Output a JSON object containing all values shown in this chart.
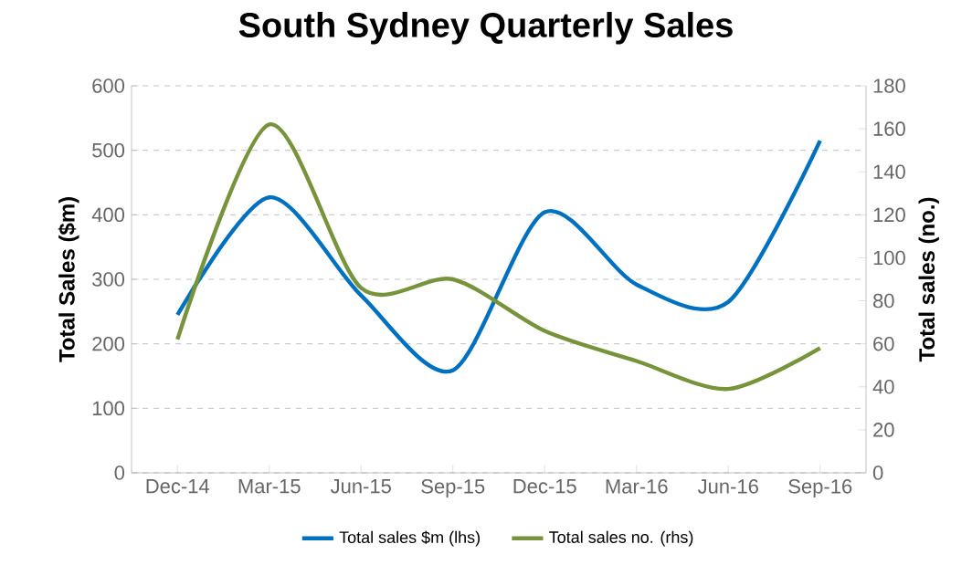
{
  "chart_data": {
    "type": "line",
    "title": "South Sydney Quarterly Sales",
    "ylabel": "Total Sales ($m)",
    "y2label": "Total sales (no.)",
    "categories": [
      "Dec-14",
      "Mar-15",
      "Jun-15",
      "Sep-15",
      "Dec-15",
      "Mar-16",
      "Jun-16",
      "Sep-16"
    ],
    "series": [
      {
        "name": "Total sales $m (lhs)",
        "color": "#0070c0",
        "values": [
          245,
          427,
          275,
          159,
          404,
          292,
          265,
          515
        ]
      },
      {
        "name": "Total sales no. (rhs)",
        "color": "#77933c",
        "axis": "y2",
        "values": [
          62,
          162,
          86,
          90,
          66,
          52,
          39,
          58
        ]
      }
    ],
    "ylim": [
      0,
      600
    ],
    "yticks": [
      0,
      100,
      200,
      300,
      400,
      500,
      600
    ],
    "y2lim": [
      0,
      180
    ],
    "y2ticks": [
      0,
      20,
      40,
      60,
      80,
      100,
      120,
      140,
      160,
      180
    ],
    "grid": "y",
    "legend": "bottom",
    "marker": "none",
    "line_style": "solid"
  }
}
